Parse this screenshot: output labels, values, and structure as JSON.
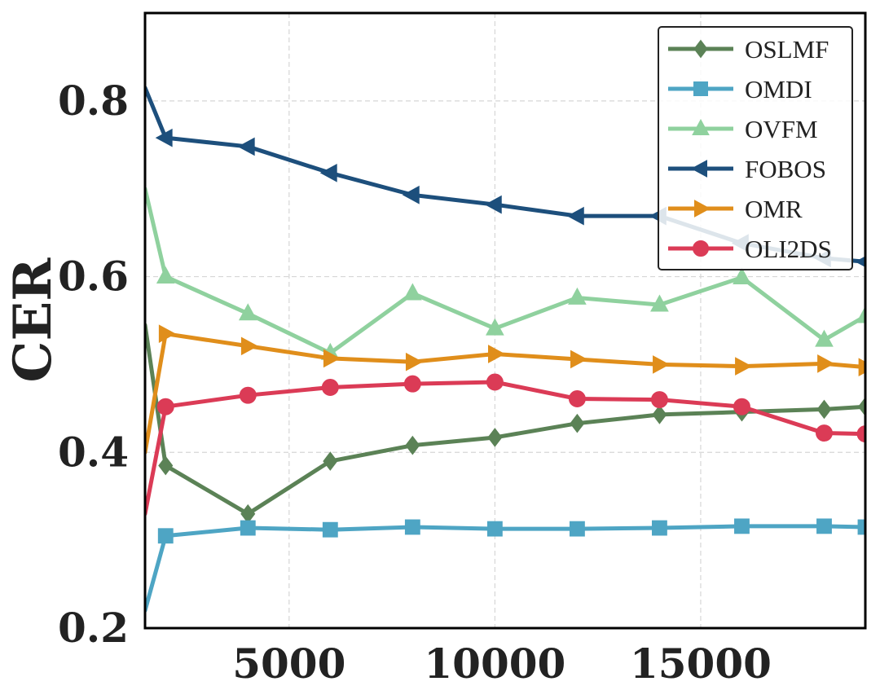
{
  "chart_data": {
    "type": "line",
    "title": "",
    "xlabel": "",
    "ylabel": "CER",
    "xlim": [
      1500,
      19000
    ],
    "ylim": [
      0.2,
      0.9
    ],
    "xticks": [
      5000,
      10000,
      15000
    ],
    "yticks": [
      0.2,
      0.4,
      0.6,
      0.8
    ],
    "xtick_labels": [
      "5000",
      "10000",
      "15000"
    ],
    "ytick_labels": [
      "0.2",
      "0.4",
      "0.6",
      "0.8"
    ],
    "grid": true,
    "legend_position": "top-right",
    "x": [
      1500,
      2000,
      4000,
      6000,
      8000,
      10000,
      12000,
      14000,
      16000,
      18000,
      19000
    ],
    "series": [
      {
        "name": "OSLMF",
        "color": "#5b8256",
        "marker": "diamond",
        "values": [
          0.545,
          0.385,
          0.33,
          0.39,
          0.408,
          0.417,
          0.433,
          0.443,
          0.446,
          0.449,
          0.452
        ]
      },
      {
        "name": "OMDI",
        "color": "#4ea5c4",
        "marker": "square",
        "values": [
          0.22,
          0.305,
          0.314,
          0.312,
          0.315,
          0.313,
          0.313,
          0.314,
          0.316,
          0.316,
          0.315
        ]
      },
      {
        "name": "OVFM",
        "color": "#8fd19e",
        "marker": "triangle-up",
        "values": [
          0.7,
          0.6,
          0.558,
          0.513,
          0.581,
          0.541,
          0.576,
          0.568,
          0.599,
          0.528,
          0.555
        ]
      },
      {
        "name": "FOBOS",
        "color": "#1d4f7c",
        "marker": "triangle-left",
        "values": [
          0.815,
          0.758,
          0.748,
          0.718,
          0.693,
          0.682,
          0.669,
          0.669,
          0.638,
          0.621,
          0.617
        ]
      },
      {
        "name": "OMR",
        "color": "#e08e1b",
        "marker": "triangle-right",
        "values": [
          0.4,
          0.535,
          0.521,
          0.507,
          0.503,
          0.512,
          0.506,
          0.5,
          0.498,
          0.501,
          0.497
        ]
      },
      {
        "name": "OLI2DS",
        "color": "#db3b56",
        "marker": "circle",
        "values": [
          0.33,
          0.452,
          0.465,
          0.474,
          0.478,
          0.48,
          0.461,
          0.46,
          0.452,
          0.422,
          0.421
        ]
      }
    ]
  }
}
